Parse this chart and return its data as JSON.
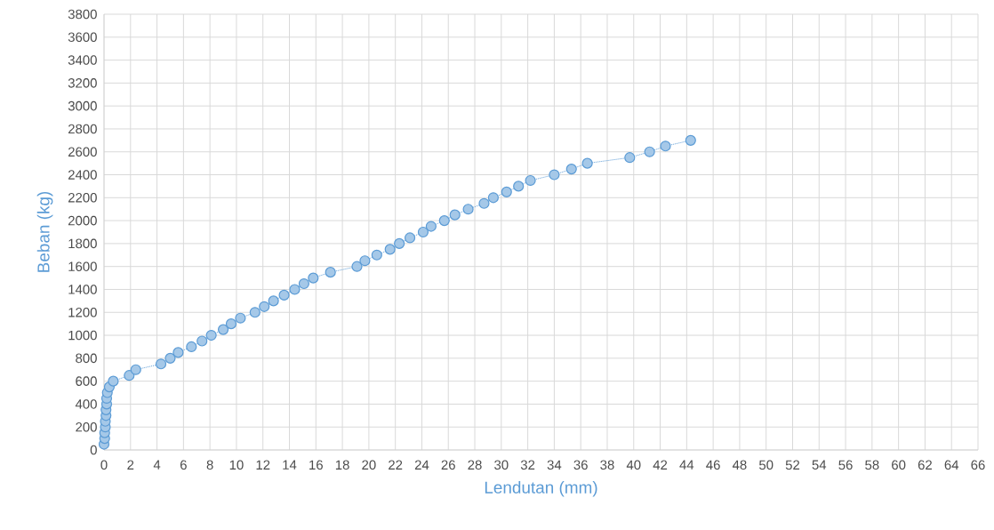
{
  "chart_data": {
    "type": "line",
    "xlabel": "Lendutan (mm)",
    "ylabel": "Beban (kg)",
    "xlim": [
      0,
      66
    ],
    "xticks": [
      0,
      2,
      4,
      6,
      8,
      10,
      12,
      14,
      16,
      18,
      20,
      22,
      24,
      26,
      28,
      30,
      32,
      34,
      36,
      38,
      40,
      42,
      44,
      46,
      48,
      50,
      52,
      54,
      56,
      58,
      60,
      62,
      64,
      66
    ],
    "ylim": [
      0,
      3800
    ],
    "yticks": [
      0,
      200,
      400,
      600,
      800,
      1000,
      1200,
      1400,
      1600,
      1800,
      2000,
      2200,
      2400,
      2600,
      2800,
      3000,
      3200,
      3400,
      3600,
      3800
    ],
    "grid": true,
    "marker": "circle",
    "line_style": "dotted",
    "series": [
      {
        "color": "#5b9bd5",
        "x": [
          0.0,
          0.05,
          0.05,
          0.1,
          0.1,
          0.15,
          0.15,
          0.2,
          0.2,
          0.25,
          0.4,
          0.7,
          1.9,
          2.4,
          4.3,
          5.0,
          5.6,
          6.6,
          7.4,
          8.1,
          9.0,
          9.6,
          10.3,
          11.4,
          12.1,
          12.8,
          13.6,
          14.4,
          15.1,
          15.8,
          17.1,
          19.1,
          19.7,
          20.6,
          21.6,
          22.3,
          23.1,
          24.1,
          24.7,
          25.7,
          26.5,
          27.5,
          28.7,
          29.4,
          30.4,
          31.3,
          32.2,
          34.0,
          35.3,
          36.5,
          39.7,
          41.2,
          42.4,
          44.3
        ],
        "values": [
          50,
          100,
          150,
          200,
          250,
          300,
          350,
          400,
          450,
          500,
          550,
          600,
          650,
          700,
          750,
          800,
          850,
          900,
          950,
          1000,
          1050,
          1100,
          1150,
          1200,
          1250,
          1300,
          1350,
          1400,
          1450,
          1500,
          1550,
          1600,
          1650,
          1700,
          1750,
          1800,
          1850,
          1900,
          1950,
          2000,
          2050,
          2100,
          2150,
          2200,
          2250,
          2300,
          2350,
          2400,
          2450,
          2500,
          2550,
          2600,
          2650,
          2700
        ]
      }
    ]
  }
}
